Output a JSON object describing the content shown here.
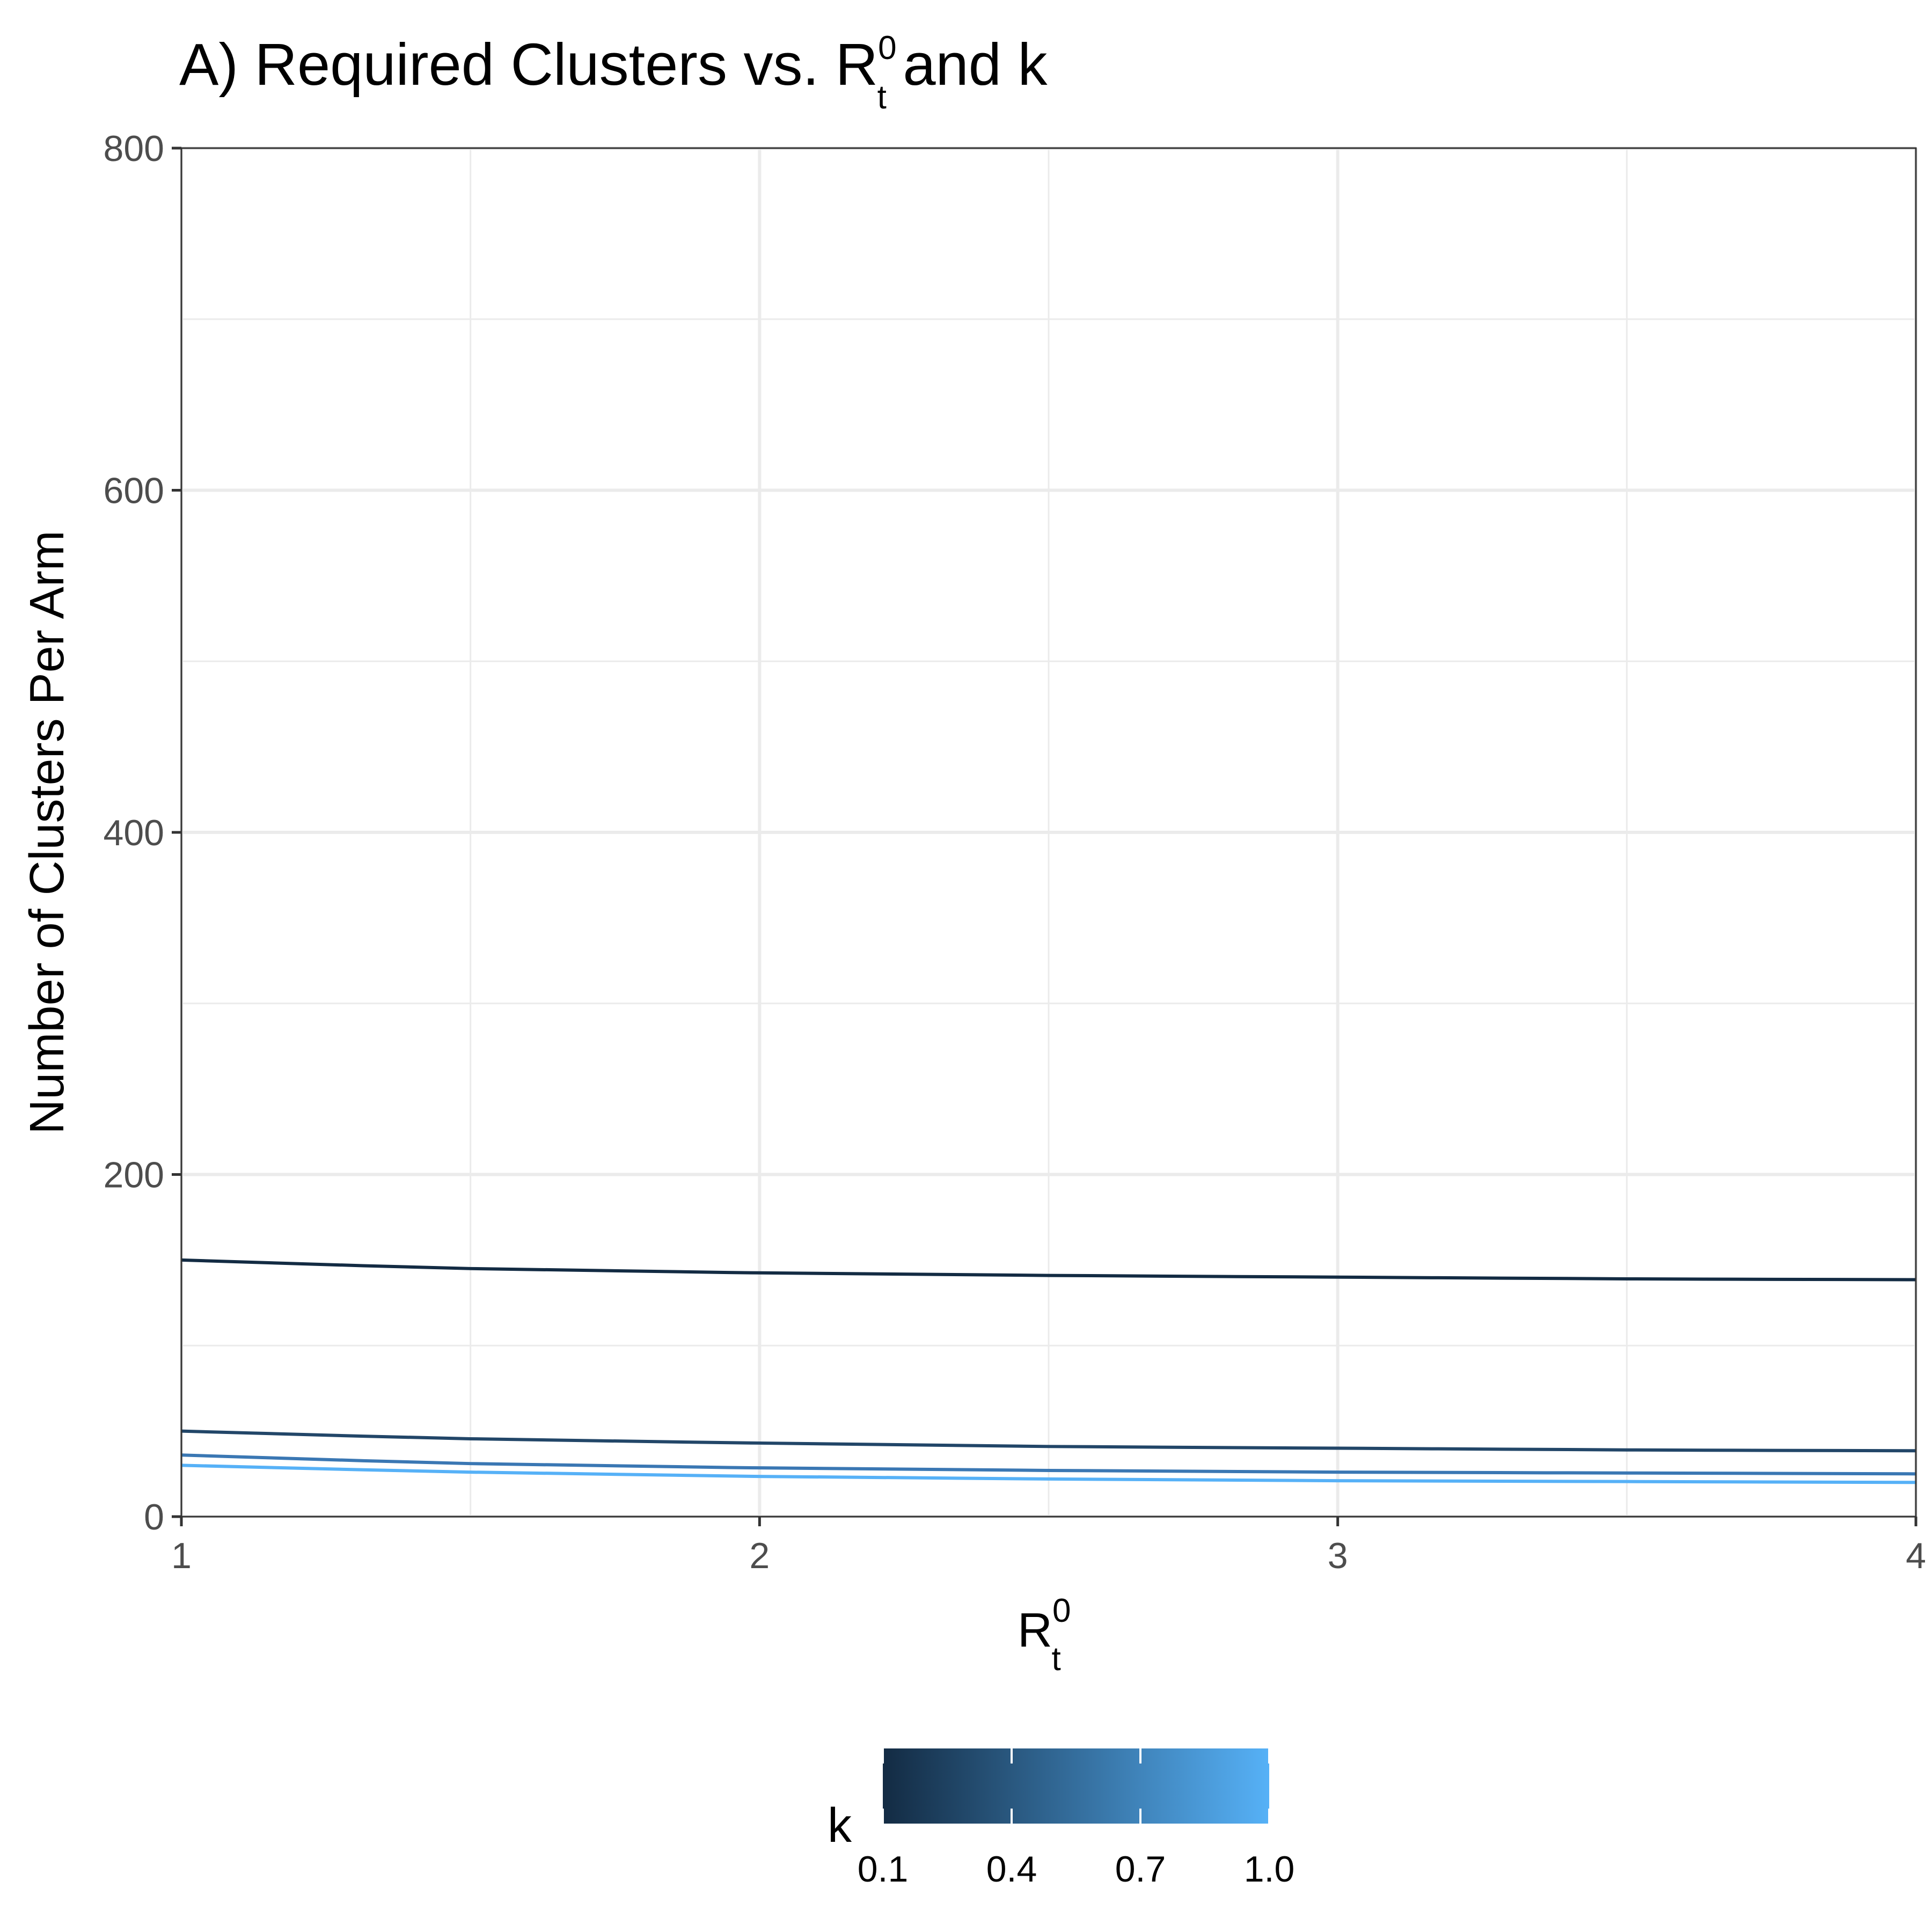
{
  "chart_data": {
    "type": "line",
    "title": {
      "prefix": "A) Required Clusters vs. ",
      "symbol": "R",
      "subscript": "t",
      "superscript": "0",
      "suffix": " and k"
    },
    "xlabel": {
      "symbol": "R",
      "subscript": "t",
      "superscript": "0"
    },
    "ylabel": "Number of Clusters Per Arm",
    "xlim": [
      1,
      4
    ],
    "ylim": [
      0,
      800
    ],
    "x_ticks": [
      1,
      2,
      3,
      4
    ],
    "x_tick_labels": [
      "1",
      "2",
      "3",
      "4"
    ],
    "y_ticks": [
      0,
      200,
      400,
      600,
      800
    ],
    "y_tick_labels": [
      "0",
      "200",
      "400",
      "600",
      "800"
    ],
    "grid": true,
    "series": [
      {
        "k": 0.1,
        "color": "#132B43",
        "x": [
          1,
          1.5,
          2,
          2.5,
          3,
          3.5,
          4
        ],
        "y": [
          150,
          145,
          142.5,
          141,
          140,
          139,
          138.5
        ]
      },
      {
        "k": 0.4,
        "color": "#224668",
        "x": [
          1,
          1.5,
          2,
          2.5,
          3,
          3.5,
          4
        ],
        "y": [
          50,
          45.5,
          43,
          41,
          40,
          39,
          38.5
        ]
      },
      {
        "k": 0.7,
        "color": "#3A77B3",
        "x": [
          1,
          1.5,
          2,
          2.5,
          3,
          3.5,
          4
        ],
        "y": [
          36,
          31,
          28.5,
          27,
          26,
          25.5,
          25
        ]
      },
      {
        "k": 1.0,
        "color": "#56B1F7",
        "x": [
          1,
          1.5,
          2,
          2.5,
          3,
          3.5,
          4
        ],
        "y": [
          30,
          26,
          23.5,
          22,
          21,
          20.5,
          20
        ]
      }
    ],
    "legend": {
      "title": "k",
      "position": "bottom",
      "type": "colorbar",
      "low_color": "#132B43",
      "high_color": "#56B1F7",
      "range": [
        0.1,
        1.0
      ],
      "breaks": [
        0.1,
        0.4,
        0.7,
        1.0
      ],
      "labels": [
        "0.1",
        "0.4",
        "0.7",
        "1.0"
      ]
    }
  }
}
